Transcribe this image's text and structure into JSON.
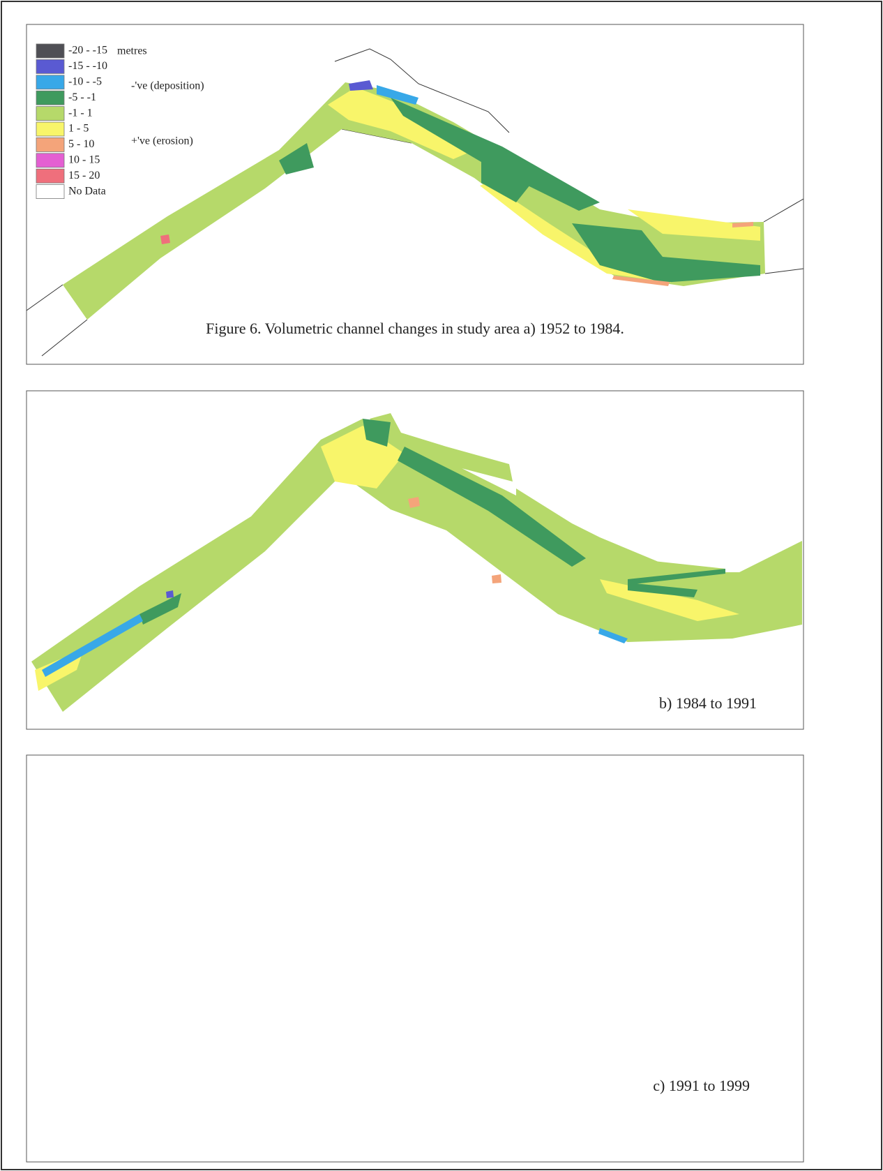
{
  "legend": {
    "unit": "metres",
    "items": [
      {
        "label": "-20 - -15",
        "color": "#4f4f55"
      },
      {
        "label": "-15 - -10",
        "color": "#5a5ad2"
      },
      {
        "label": "-10 - -5",
        "color": "#38a8e8"
      },
      {
        "label": "-5 - -1",
        "color": "#3f9a5e"
      },
      {
        "label": "-1 - 1",
        "color": "#b6d96a"
      },
      {
        "label": "1 - 5",
        "color": "#f8f56a"
      },
      {
        "label": "5 - 10",
        "color": "#f4a47a"
      },
      {
        "label": "10 - 15",
        "color": "#e45fd2"
      },
      {
        "label": "15 - 20",
        "color": "#ef6f7c"
      },
      {
        "label": "No Data",
        "color": "#ffffff"
      }
    ],
    "notes": [
      "-'ve (deposition)",
      "+'ve (erosion)"
    ]
  },
  "panels": [
    {
      "caption": "Figure 6.  Volumetric channel changes in study area  a)  1952 to 1984."
    },
    {
      "caption": "b)  1984 to 1991"
    },
    {
      "caption": "c)  1991 to 1999"
    }
  ]
}
